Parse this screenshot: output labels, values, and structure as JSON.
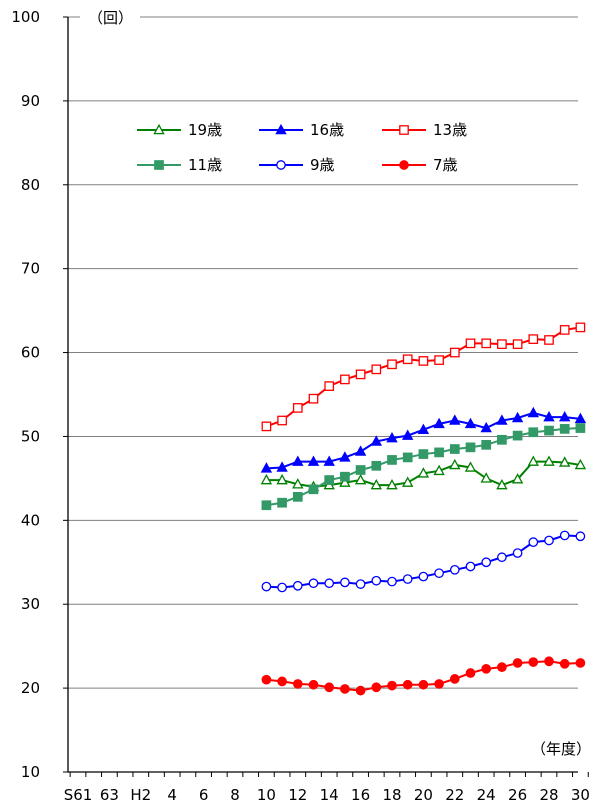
{
  "chart_data": {
    "type": "line",
    "y_unit_label": "（回）",
    "x_unit_label": "（年度）",
    "ylim": [
      10,
      100
    ],
    "y_ticks": [
      10,
      20,
      30,
      40,
      50,
      60,
      70,
      80,
      90,
      100
    ],
    "x_tick_labels": [
      "S61",
      "63",
      "H2",
      "4",
      "6",
      "8",
      "10",
      "12",
      "14",
      "16",
      "18",
      "20",
      "22",
      "24",
      "26",
      "28",
      "30"
    ],
    "x_categories": [
      "S61",
      "S62",
      "S63",
      "H1",
      "H2",
      "H3",
      "H4",
      "H5",
      "H6",
      "H7",
      "H8",
      "H9",
      "H10",
      "H11",
      "H12",
      "H13",
      "H14",
      "H15",
      "H16",
      "H17",
      "H18",
      "H19",
      "H20",
      "H21",
      "H22",
      "H23",
      "H24",
      "H25",
      "H26",
      "H27",
      "H28",
      "H29",
      "H30"
    ],
    "grid": true,
    "legend_position": "top-center",
    "series": [
      {
        "name": "19歳",
        "color": "#008000",
        "marker": "triangle-open",
        "start_category": "H10",
        "values": [
          44.8,
          44.8,
          44.3,
          44.0,
          44.2,
          44.5,
          44.8,
          44.2,
          44.2,
          44.5,
          45.6,
          45.9,
          46.6,
          46.3,
          45.0,
          44.2,
          44.9,
          47.0,
          47.0,
          46.9,
          46.6
        ]
      },
      {
        "name": "16歳",
        "color": "#0000ff",
        "marker": "triangle-filled",
        "start_category": "H10",
        "values": [
          46.2,
          46.3,
          47.0,
          47.0,
          47.0,
          47.5,
          48.2,
          49.4,
          49.8,
          50.1,
          50.8,
          51.5,
          51.9,
          51.5,
          51.0,
          51.9,
          52.2,
          52.8,
          52.3,
          52.3,
          52.1
        ]
      },
      {
        "name": "13歳",
        "color": "#ff0000",
        "marker": "square-open",
        "start_category": "H10",
        "values": [
          51.2,
          51.9,
          53.4,
          54.5,
          56.0,
          56.8,
          57.4,
          58.0,
          58.6,
          59.2,
          59.0,
          59.1,
          60.0,
          61.1,
          61.1,
          61.0,
          61.0,
          61.6,
          61.5,
          62.7,
          63.0
        ]
      },
      {
        "name": "11歳",
        "color": "#339966",
        "marker": "square-filled",
        "start_category": "H10",
        "values": [
          41.8,
          42.1,
          42.8,
          43.7,
          44.8,
          45.2,
          46.0,
          46.5,
          47.2,
          47.5,
          47.9,
          48.1,
          48.5,
          48.7,
          49.0,
          49.6,
          50.1,
          50.5,
          50.7,
          50.9,
          51.0
        ]
      },
      {
        "name": "9歳",
        "color": "#0000ff",
        "marker": "circle-open",
        "start_category": "H10",
        "values": [
          32.1,
          32.0,
          32.2,
          32.5,
          32.5,
          32.6,
          32.4,
          32.8,
          32.7,
          33.0,
          33.3,
          33.7,
          34.1,
          34.5,
          35.0,
          35.6,
          36.1,
          37.4,
          37.6,
          38.2,
          38.1
        ]
      },
      {
        "name": "7歳",
        "color": "#ff0000",
        "marker": "circle-filled",
        "start_category": "H10",
        "values": [
          21.0,
          20.8,
          20.5,
          20.4,
          20.1,
          19.9,
          19.7,
          20.1,
          20.3,
          20.4,
          20.4,
          20.5,
          21.1,
          21.8,
          22.3,
          22.5,
          23.0,
          23.1,
          23.2,
          22.9,
          23.0
        ]
      }
    ]
  }
}
